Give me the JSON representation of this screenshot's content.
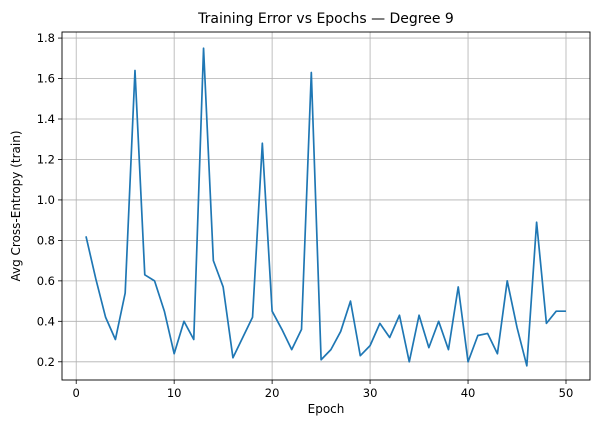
{
  "chart_data": {
    "type": "line",
    "title": "Training Error vs Epochs — Degree 9",
    "xlabel": "Epoch",
    "ylabel": "Avg Cross-Entropy (train)",
    "xlim": [
      -1.45,
      52.45
    ],
    "ylim": [
      0.11,
      1.83
    ],
    "xticks": [
      0,
      10,
      20,
      30,
      40,
      50
    ],
    "xtick_labels": [
      "0",
      "10",
      "20",
      "30",
      "40",
      "50"
    ],
    "yticks": [
      0.2,
      0.4,
      0.6,
      0.8,
      1.0,
      1.2,
      1.4,
      1.6,
      1.8
    ],
    "ytick_labels": [
      "0.2",
      "0.4",
      "0.6",
      "0.8",
      "1.0",
      "1.2",
      "1.4",
      "1.6",
      "1.8"
    ],
    "grid": true,
    "line_color": "#1f77b4",
    "series": [
      {
        "x": [
          1,
          2,
          3,
          4,
          5,
          6,
          7,
          8,
          9,
          10,
          11,
          12,
          13,
          14,
          15,
          16,
          17,
          18,
          19,
          20,
          21,
          22,
          23,
          24,
          25,
          26,
          27,
          28,
          29,
          30,
          31,
          32,
          33,
          34,
          35,
          36,
          37,
          38,
          39,
          40,
          41,
          42,
          43,
          44,
          45,
          46,
          47,
          48,
          49,
          50
        ],
        "values": [
          0.82,
          0.61,
          0.42,
          0.31,
          0.54,
          1.64,
          0.63,
          0.6,
          0.45,
          0.24,
          0.4,
          0.31,
          1.75,
          0.7,
          0.57,
          0.22,
          0.32,
          0.42,
          1.28,
          0.45,
          0.36,
          0.26,
          0.36,
          1.63,
          0.21,
          0.26,
          0.35,
          0.5,
          0.23,
          0.28,
          0.39,
          0.32,
          0.43,
          0.2,
          0.43,
          0.27,
          0.4,
          0.26,
          0.57,
          0.2,
          0.33,
          0.34,
          0.24,
          0.6,
          0.37,
          0.18,
          0.89,
          0.39,
          0.45,
          0.45
        ]
      }
    ]
  }
}
